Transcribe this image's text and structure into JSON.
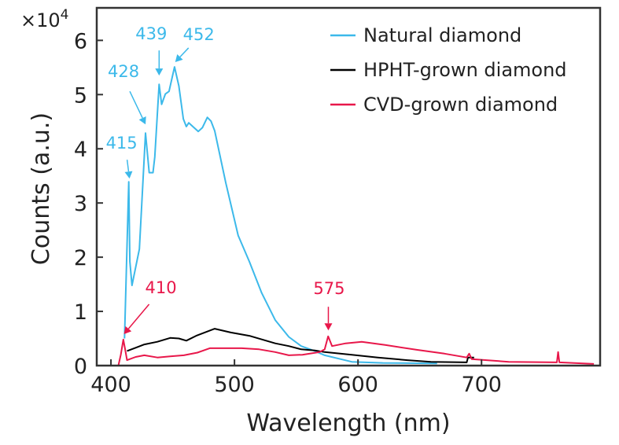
{
  "chart_data": {
    "type": "line",
    "title": "",
    "xlabel": "Wavelength (nm)",
    "ylabel": "Counts (a.u.)",
    "y_multiplier_label": {
      "base": "×10",
      "exp": "4"
    },
    "xlim": [
      388.5,
      796
    ],
    "ylim": [
      0,
      6.6
    ],
    "xticks": [
      400,
      500,
      600,
      700
    ],
    "yticks": [
      0,
      1,
      2,
      3,
      4,
      5,
      6
    ],
    "grid": false,
    "legend_placement": "top-right",
    "series": [
      {
        "name": "Natural diamond",
        "color": "#3cb9ea",
        "points": [
          [
            411,
            0.5
          ],
          [
            414.4,
            3.39
          ],
          [
            415.3,
            1.92
          ],
          [
            417,
            1.48
          ],
          [
            423,
            2.15
          ],
          [
            428,
            4.29
          ],
          [
            431,
            3.56
          ],
          [
            434,
            3.56
          ],
          [
            435.5,
            3.85
          ],
          [
            439,
            5.19
          ],
          [
            441,
            4.82
          ],
          [
            444,
            5.01
          ],
          [
            447,
            5.06
          ],
          [
            451.5,
            5.51
          ],
          [
            455,
            5.16
          ],
          [
            458.6,
            4.55
          ],
          [
            461,
            4.41
          ],
          [
            463,
            4.48
          ],
          [
            470.7,
            4.32
          ],
          [
            474,
            4.39
          ],
          [
            478,
            4.58
          ],
          [
            481,
            4.51
          ],
          [
            484,
            4.33
          ],
          [
            493,
            3.37
          ],
          [
            503,
            2.4
          ],
          [
            512,
            1.92
          ],
          [
            522,
            1.34
          ],
          [
            533,
            0.84
          ],
          [
            544,
            0.53
          ],
          [
            554,
            0.36
          ],
          [
            565,
            0.27
          ],
          [
            573,
            0.19
          ],
          [
            595,
            0.07
          ],
          [
            620,
            0.05
          ],
          [
            664,
            0.04
          ]
        ]
      },
      {
        "name": "HPHT-grown diamond",
        "color": "#000000",
        "points": [
          [
            413,
            0.27
          ],
          [
            420,
            0.33
          ],
          [
            427,
            0.39
          ],
          [
            437.6,
            0.44
          ],
          [
            448,
            0.51
          ],
          [
            455,
            0.5
          ],
          [
            461,
            0.46
          ],
          [
            469,
            0.55
          ],
          [
            484,
            0.68
          ],
          [
            497,
            0.61
          ],
          [
            512,
            0.55
          ],
          [
            533,
            0.41
          ],
          [
            544,
            0.36
          ],
          [
            554,
            0.3
          ],
          [
            565,
            0.28
          ],
          [
            573,
            0.25
          ],
          [
            595,
            0.2
          ],
          [
            616,
            0.15
          ],
          [
            640,
            0.1
          ],
          [
            659,
            0.07
          ],
          [
            688,
            0.06
          ],
          [
            689,
            0.15
          ],
          [
            694,
            0.15
          ]
        ]
      },
      {
        "name": "CVD-grown diamond",
        "color": "#e8174a",
        "points": [
          [
            388.5,
            0
          ],
          [
            406,
            0
          ],
          [
            408,
            0.2
          ],
          [
            410,
            0.48
          ],
          [
            411.5,
            0.3
          ],
          [
            413,
            0.1
          ],
          [
            420,
            0.16
          ],
          [
            427,
            0.19
          ],
          [
            437.6,
            0.15
          ],
          [
            448,
            0.17
          ],
          [
            459,
            0.19
          ],
          [
            470,
            0.24
          ],
          [
            480,
            0.32
          ],
          [
            505.7,
            0.32
          ],
          [
            520,
            0.3
          ],
          [
            533,
            0.25
          ],
          [
            544,
            0.19
          ],
          [
            555,
            0.2
          ],
          [
            569,
            0.25
          ],
          [
            573,
            0.3
          ],
          [
            575.8,
            0.54
          ],
          [
            579,
            0.36
          ],
          [
            590,
            0.41
          ],
          [
            603,
            0.44
          ],
          [
            622,
            0.38
          ],
          [
            648,
            0.29
          ],
          [
            670,
            0.22
          ],
          [
            688,
            0.15
          ],
          [
            690,
            0.22
          ],
          [
            692,
            0.12
          ],
          [
            722,
            0.07
          ],
          [
            761,
            0.06
          ],
          [
            762,
            0.25
          ],
          [
            763,
            0.06
          ],
          [
            791,
            0.03
          ]
        ]
      }
    ],
    "annotations": [
      {
        "text": "415",
        "color": "#3cb9ea",
        "target": [
          415,
          3.45
        ]
      },
      {
        "text": "428",
        "color": "#3cb9ea",
        "target": [
          428,
          4.45
        ]
      },
      {
        "text": "439",
        "color": "#3cb9ea",
        "target": [
          439,
          5.35
        ]
      },
      {
        "text": "452",
        "color": "#3cb9ea",
        "target": [
          452,
          5.6
        ]
      },
      {
        "text": "410",
        "color": "#e8174a",
        "target": [
          410.5,
          0.58
        ]
      },
      {
        "text": "575",
        "color": "#e8174a",
        "target": [
          576,
          0.65
        ]
      }
    ]
  }
}
